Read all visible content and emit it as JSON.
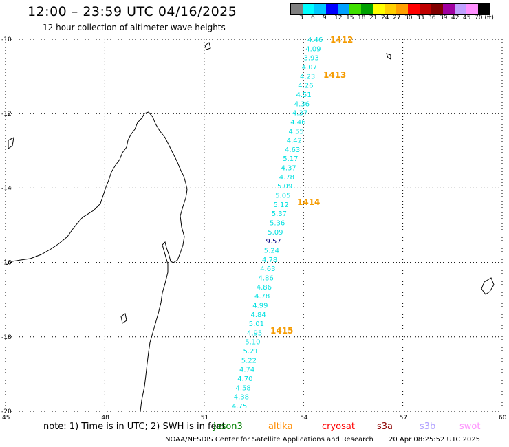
{
  "header": {
    "title": "12:00 – 23:59 UTC 04/16/2025",
    "subtitle": "12 hour collection of altimeter wave heights"
  },
  "colorbar": {
    "colors": [
      "#808080",
      "#00ffff",
      "#00c8ff",
      "#0000ff",
      "#00a0ff",
      "#40e000",
      "#00a000",
      "#ffff00",
      "#ffd000",
      "#ffa000",
      "#ff0000",
      "#c00000",
      "#800000",
      "#a000a0",
      "#c0a0ff",
      "#ff90ff",
      "#000000"
    ],
    "labels": [
      "3",
      "6",
      "9",
      "12",
      "15",
      "18",
      "21",
      "24",
      "27",
      "30",
      "33",
      "36",
      "39",
      "42",
      "45",
      "70 (ft)"
    ]
  },
  "map": {
    "lon_range": [
      45,
      60
    ],
    "lat_range": [
      -20,
      -10
    ],
    "lon_ticks": [
      "45",
      "48",
      "51",
      "54",
      "57",
      "60"
    ],
    "lat_ticks": [
      "-10",
      "-12",
      "-14",
      "-16",
      "-18",
      "-20"
    ],
    "grid": "dotted"
  },
  "observations": {
    "swh_values": [
      "4.46",
      "4.09",
      "3.93",
      "4.07",
      "4.23",
      "4.26",
      "4.51",
      "4.36",
      "4.37",
      "4.46",
      "4.55",
      "4.42",
      "4.63",
      "5.17",
      "4.37",
      "4.78",
      "5.09",
      "5.05",
      "5.12",
      "5.37",
      "5.36",
      "5.09",
      "9.57",
      "5.24",
      "4.78",
      "4.63",
      "4.86",
      "4.86",
      "4.78",
      "4.99",
      "4.84",
      "5.01",
      "4.95",
      "5.10",
      "5.21",
      "5.22",
      "4.74",
      "4.70",
      "4.58",
      "4.38",
      "4.75"
    ],
    "text_color": "#00e0e0",
    "highlight_color": "#000080",
    "pass_labels": [
      "1412",
      "1413",
      "1414",
      "1415"
    ],
    "pass_color": "#f59b00"
  },
  "footer": {
    "note": "note:  1) Time is in UTC;  2) SWH is in feet",
    "legend": [
      {
        "name": "jason3",
        "color": "#008000"
      },
      {
        "name": "altika",
        "color": "#ff8c00"
      },
      {
        "name": "cryosat",
        "color": "#ff0000"
      },
      {
        "name": "s3a",
        "color": "#8b0000"
      },
      {
        "name": "s3b",
        "color": "#b0a0ff"
      },
      {
        "name": "swot",
        "color": "#ff90ff"
      }
    ],
    "credit": "NOAA/NESDIS Center for Satellite Applications and Research",
    "timestamp": "20 Apr 08:25:52 UTC 2025"
  }
}
